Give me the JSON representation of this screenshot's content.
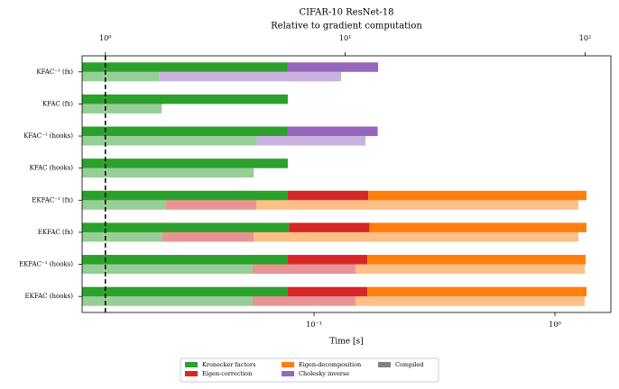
{
  "chart_data": {
    "type": "stacked-barh-log",
    "title": "CIFAR-10 ResNet-18",
    "subtitle": "Relative to gradient computation",
    "xlabel": "Time [s]",
    "categories": [
      "KFAC⁻¹ (fx)",
      "KFAC (fx)",
      "KFAC⁻¹ (hooks)",
      "KFAC (hooks)",
      "EKFAC⁻¹ (fx)",
      "EKFAC (fx)",
      "EKFAC⁻¹ (hooks)",
      "EKFAC (hooks)"
    ],
    "series": [
      {
        "name": "Kronecker factors",
        "color": "#2ca02c",
        "values": [
          0.0778,
          0.0778,
          0.0778,
          0.0778,
          0.0778,
          0.0786,
          0.0778,
          0.0778
        ],
        "compiled_values": [
          0.0227,
          0.0233,
          0.0576,
          0.0561,
          0.0243,
          0.0235,
          0.0556,
          0.0556
        ]
      },
      {
        "name": "Eigen-correction",
        "color": "#d62728",
        "values": [
          null,
          null,
          null,
          null,
          0.09,
          0.0912,
          0.0886,
          0.0886
        ],
        "compiled_values": [
          null,
          null,
          null,
          null,
          0.0333,
          0.0326,
          0.0931,
          0.0931
        ]
      },
      {
        "name": "Eigen-decomposition",
        "color": "#ff7f0e",
        "values": [
          null,
          null,
          null,
          null,
          1.184,
          1.182,
          1.174,
          1.186
        ],
        "compiled_values": [
          null,
          null,
          null,
          null,
          1.193,
          1.195,
          1.18,
          1.18
        ]
      },
      {
        "name": "Cholesky inverse",
        "color": "#9467bd",
        "values": [
          0.1067,
          null,
          0.1059,
          null,
          null,
          null,
          null,
          null
        ],
        "compiled_values": [
          0.1069,
          null,
          0.1059,
          null,
          null,
          null,
          null,
          null
        ]
      }
    ],
    "compiled": {
      "name": "Compiled",
      "color": "#808080",
      "opacity": 0.5
    },
    "xscale": "log",
    "xlim": [
      0.01089,
      1.707
    ],
    "xticks": [
      {
        "value": 0.1,
        "label": "10⁻¹"
      },
      {
        "value": 1,
        "label": "10⁰"
      }
    ],
    "x2lim": [
      0.8,
      128
    ],
    "x2ticks": [
      {
        "value": 1,
        "label": "10⁰"
      },
      {
        "value": 10,
        "label": "10¹"
      },
      {
        "value": 100,
        "label": "10²"
      }
    ],
    "reference_x2": 1,
    "legend": "lower center"
  }
}
